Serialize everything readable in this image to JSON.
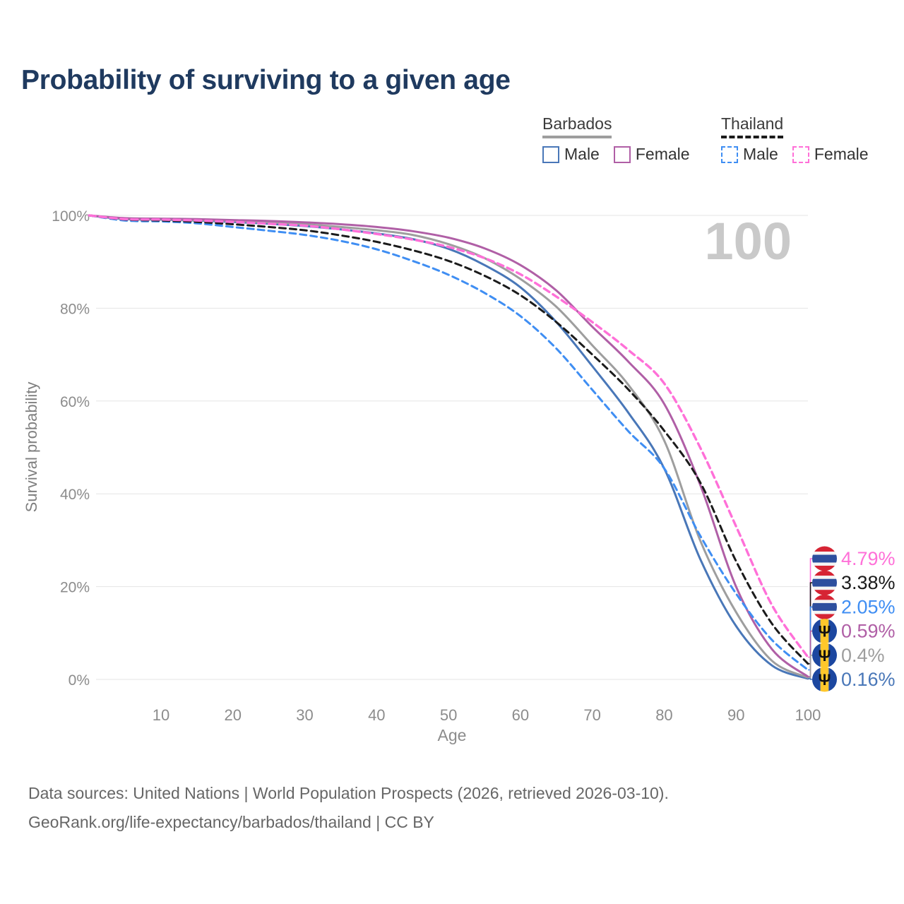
{
  "title": "Probability of surviving to a given age",
  "legend": {
    "groups": [
      {
        "country": "Barbados",
        "line_style": "solid",
        "line_color": "#9e9e9e",
        "items": [
          {
            "label": "Male",
            "color": "#4977b8",
            "dashed": false
          },
          {
            "label": "Female",
            "color": "#b05fa6",
            "dashed": false
          }
        ]
      },
      {
        "country": "Thailand",
        "line_style": "dashed",
        "line_color": "#1b1b1b",
        "items": [
          {
            "label": "Male",
            "color": "#3f8ef3",
            "dashed": true
          },
          {
            "label": "Female",
            "color": "#ff70d8",
            "dashed": true
          }
        ]
      }
    ]
  },
  "watermark": "100",
  "chart_data": {
    "type": "line",
    "title": "Probability of surviving to a given age",
    "xlabel": "Age",
    "ylabel": "Survival probability",
    "xlim": [
      0,
      100
    ],
    "ylim": [
      0,
      100
    ],
    "grid": "horizontal",
    "legend_position": "top-right",
    "x_ticks": [
      10,
      20,
      30,
      40,
      50,
      60,
      70,
      80,
      90,
      100
    ],
    "y_ticks": [
      0,
      20,
      40,
      60,
      80,
      100
    ],
    "y_tick_labels": [
      "0%",
      "20%",
      "40%",
      "60%",
      "80%",
      "100%"
    ],
    "x": [
      0,
      5,
      10,
      15,
      20,
      25,
      30,
      35,
      40,
      45,
      50,
      55,
      60,
      65,
      70,
      75,
      80,
      85,
      90,
      95,
      100
    ],
    "series": [
      {
        "name": "Thailand Female",
        "flag": "thailand",
        "color": "#ff70d8",
        "dashed": true,
        "end_label": "4.79%",
        "values": [
          100,
          99.2,
          99.1,
          98.9,
          98.6,
          98.2,
          97.8,
          97.0,
          96.0,
          94.8,
          93.2,
          90.8,
          87.3,
          82.5,
          77.0,
          71.0,
          63.8,
          50.0,
          33.0,
          16.0,
          4.79
        ]
      },
      {
        "name": "Thailand",
        "flag": "thailand",
        "color": "#1b1b1b",
        "dashed": true,
        "end_label": "3.38%",
        "values": [
          100,
          99.1,
          98.9,
          98.6,
          98.1,
          97.5,
          96.8,
          95.7,
          94.3,
          92.5,
          90.2,
          87.0,
          82.8,
          77.0,
          70.0,
          62.5,
          53.6,
          42.5,
          25.5,
          12.0,
          3.38
        ]
      },
      {
        "name": "Thailand Male",
        "flag": "thailand",
        "color": "#3f8ef3",
        "dashed": true,
        "end_label": "2.05%",
        "values": [
          100,
          98.9,
          98.7,
          98.3,
          97.5,
          96.7,
          95.8,
          94.5,
          92.7,
          90.2,
          87.2,
          83.3,
          78.3,
          71.3,
          62.4,
          53.5,
          45.5,
          31.0,
          18.5,
          8.5,
          2.05
        ]
      },
      {
        "name": "Barbados Female",
        "flag": "barbados",
        "color": "#b05fa6",
        "dashed": false,
        "end_label": "0.59%",
        "values": [
          100,
          99.4,
          99.3,
          99.2,
          99.0,
          98.8,
          98.5,
          98.1,
          97.5,
          96.6,
          95.2,
          92.9,
          89.3,
          83.8,
          76.0,
          68.5,
          59.4,
          42.0,
          20.0,
          6.5,
          0.59
        ]
      },
      {
        "name": "Barbados",
        "flag": "barbados",
        "color": "#9e9e9e",
        "dashed": false,
        "end_label": "0.4%",
        "values": [
          100,
          99.3,
          99.2,
          99.0,
          98.8,
          98.5,
          98.1,
          97.5,
          96.8,
          95.8,
          93.8,
          90.8,
          86.3,
          80.3,
          72.0,
          63.5,
          51.5,
          30.0,
          14.5,
          4.0,
          0.4
        ]
      },
      {
        "name": "Barbados Male",
        "flag": "barbados",
        "color": "#4977b8",
        "dashed": false,
        "end_label": "0.16%",
        "values": [
          100,
          99.2,
          99.1,
          98.9,
          98.6,
          98.2,
          97.7,
          97.0,
          96.1,
          94.9,
          92.8,
          89.3,
          84.5,
          77.0,
          67.5,
          57.5,
          45.5,
          26.0,
          11.5,
          3.0,
          0.16
        ]
      }
    ]
  },
  "flag_colors": {
    "thailand_red": "#d62434",
    "thailand_blue": "#2d4f9e",
    "barbados_blue": "#1c47a0",
    "barbados_gold": "#ffc72b",
    "trident": "#101010"
  },
  "footer": {
    "line1": "Data sources: United Nations | World Population Prospects (2026, retrieved 2026-03-10).",
    "line2": "GeoRank.org/life-expectancy/barbados/thailand | CC BY"
  }
}
